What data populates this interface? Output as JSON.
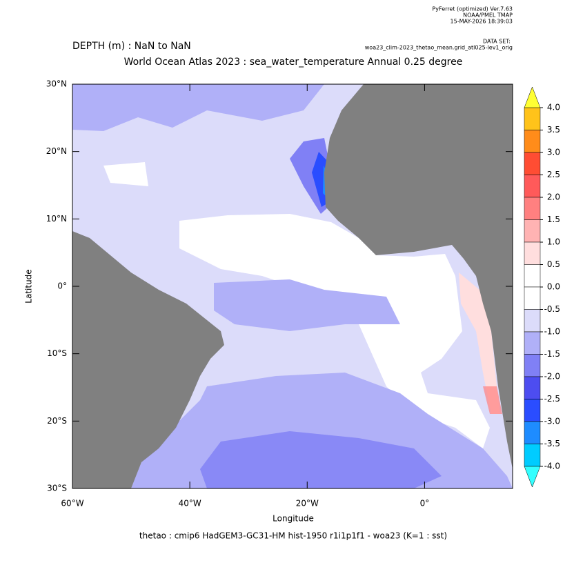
{
  "header": {
    "program": "PyFerret (optimized) Ver.7.63",
    "org": "NOAA/PMEL TMAP",
    "date": "15-MAY-2026 18:39:03",
    "dataset_label": "DATA SET:",
    "dataset": "woa23_clim-2023_thetao_mean.grid_atl025-lev1_orig"
  },
  "title": {
    "depth": "DEPTH (m) : NaN to NaN",
    "main": "World Ocean Atlas 2023 : sea_water_temperature Annual  0.25 degree"
  },
  "map": {
    "xlabel": "Longitude",
    "ylabel": "Latitude",
    "xlim": [
      -60,
      15
    ],
    "ylim": [
      -30,
      30
    ],
    "xticks": [
      {
        "value": -60,
        "label": "60°W"
      },
      {
        "value": -40,
        "label": "40°W"
      },
      {
        "value": -20,
        "label": "20°W"
      },
      {
        "value": 0,
        "label": "0°"
      }
    ],
    "yticks": [
      {
        "value": 30,
        "label": "30°N"
      },
      {
        "value": 20,
        "label": "20°N"
      },
      {
        "value": 10,
        "label": "10°N"
      },
      {
        "value": 0,
        "label": "0°"
      },
      {
        "value": -10,
        "label": "10°S"
      },
      {
        "value": -20,
        "label": "20°S"
      },
      {
        "value": -30,
        "label": "30°S"
      }
    ]
  },
  "colorbar": {
    "levels": [
      {
        "value": 4,
        "label": "4.0"
      },
      {
        "value": 3.5,
        "label": "3.5"
      },
      {
        "value": 3,
        "label": "3.0"
      },
      {
        "value": 2.5,
        "label": "2.5"
      },
      {
        "value": 2,
        "label": "2.0"
      },
      {
        "value": 1.5,
        "label": "1.5"
      },
      {
        "value": 1,
        "label": "1.0"
      },
      {
        "value": 0.5,
        "label": "0.5"
      },
      {
        "value": 0,
        "label": "0.0"
      },
      {
        "value": -0.5,
        "label": "-0.5"
      },
      {
        "value": -1,
        "label": "-1.0"
      },
      {
        "value": -1.5,
        "label": "-1.5"
      },
      {
        "value": -2,
        "label": "-2.0"
      },
      {
        "value": -2.5,
        "label": "-2.5"
      },
      {
        "value": -3,
        "label": "-3.0"
      },
      {
        "value": -3.5,
        "label": "-3.5"
      },
      {
        "value": -4,
        "label": "-4.0"
      }
    ],
    "colors": [
      "#ffc31a",
      "#ff8c1a",
      "#ff4d33",
      "#ff5a5a",
      "#ff8080",
      "#ffb3b3",
      "#ffdede",
      "#ffffff",
      "#ffffff",
      "#dcdcfa",
      "#b0b0f8",
      "#8080f5",
      "#4d4df0",
      "#2a4dff",
      "#1e8cff",
      "#00ccff"
    ],
    "over_color": "#ffff33",
    "under_color": "#33ffff"
  },
  "footer": "thetao : cmip6 HadGEM3-GC31-HM hist-1950 r1i1p1f1 - woa23  (K=1 : sst)"
}
